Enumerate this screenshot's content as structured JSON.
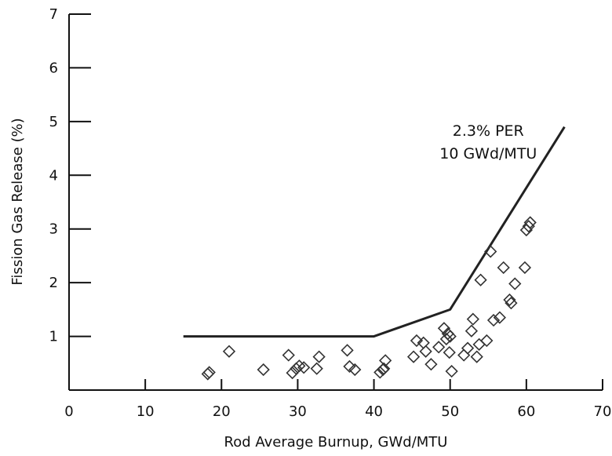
{
  "chart_data": {
    "type": "scatter",
    "title": "",
    "xlabel": "Rod Average Burnup, GWd/MTU",
    "ylabel": "Fission Gas Release (%)",
    "xlim": [
      0,
      70
    ],
    "ylim": [
      0,
      7
    ],
    "xticks": [
      0,
      10,
      20,
      30,
      40,
      50,
      60,
      70
    ],
    "yticks": [
      1,
      2,
      3,
      4,
      5,
      6,
      7
    ],
    "xtick_labels": [
      "0",
      "10",
      "20",
      "30",
      "40",
      "50",
      "60",
      "70"
    ],
    "ytick_labels": [
      "1",
      "2",
      "3",
      "4",
      "5",
      "6",
      "7"
    ],
    "grid": false,
    "legend": "none",
    "limit_line": {
      "x": [
        15,
        40,
        50,
        65
      ],
      "y": [
        1.0,
        1.0,
        1.5,
        4.9
      ]
    },
    "annotation": {
      "lines": [
        "2.3% PER",
        "10 GWd/MTU"
      ],
      "x": 55,
      "y": 4.5
    },
    "points": {
      "marker": "diamond",
      "x": [
        18.2,
        18.4,
        21.0,
        25.5,
        28.8,
        29.3,
        29.8,
        30.2,
        30.8,
        32.8,
        32.5,
        36.5,
        36.8,
        37.5,
        40.8,
        41.2,
        41.5,
        41.3,
        45.2,
        45.6,
        46.5,
        46.8,
        47.5,
        48.5,
        49.2,
        49.5,
        49.7,
        49.9,
        50.0,
        50.2,
        51.8,
        52.3,
        52.8,
        53.0,
        53.5,
        53.8,
        54.0,
        54.8,
        55.3,
        55.7,
        56.5,
        57.0,
        57.8,
        58.0,
        58.5,
        59.8,
        60.0,
        60.3,
        60.5
      ],
      "y": [
        0.3,
        0.33,
        0.72,
        0.38,
        0.65,
        0.32,
        0.4,
        0.45,
        0.42,
        0.62,
        0.4,
        0.74,
        0.44,
        0.38,
        0.33,
        0.38,
        0.55,
        0.4,
        0.62,
        0.92,
        0.88,
        0.72,
        0.48,
        0.8,
        1.15,
        0.95,
        1.05,
        0.7,
        1.0,
        0.35,
        0.65,
        0.78,
        1.1,
        1.32,
        0.62,
        0.85,
        2.05,
        0.92,
        2.58,
        1.3,
        1.35,
        2.28,
        1.68,
        1.62,
        1.98,
        2.28,
        2.98,
        3.05,
        3.12
      ]
    }
  }
}
